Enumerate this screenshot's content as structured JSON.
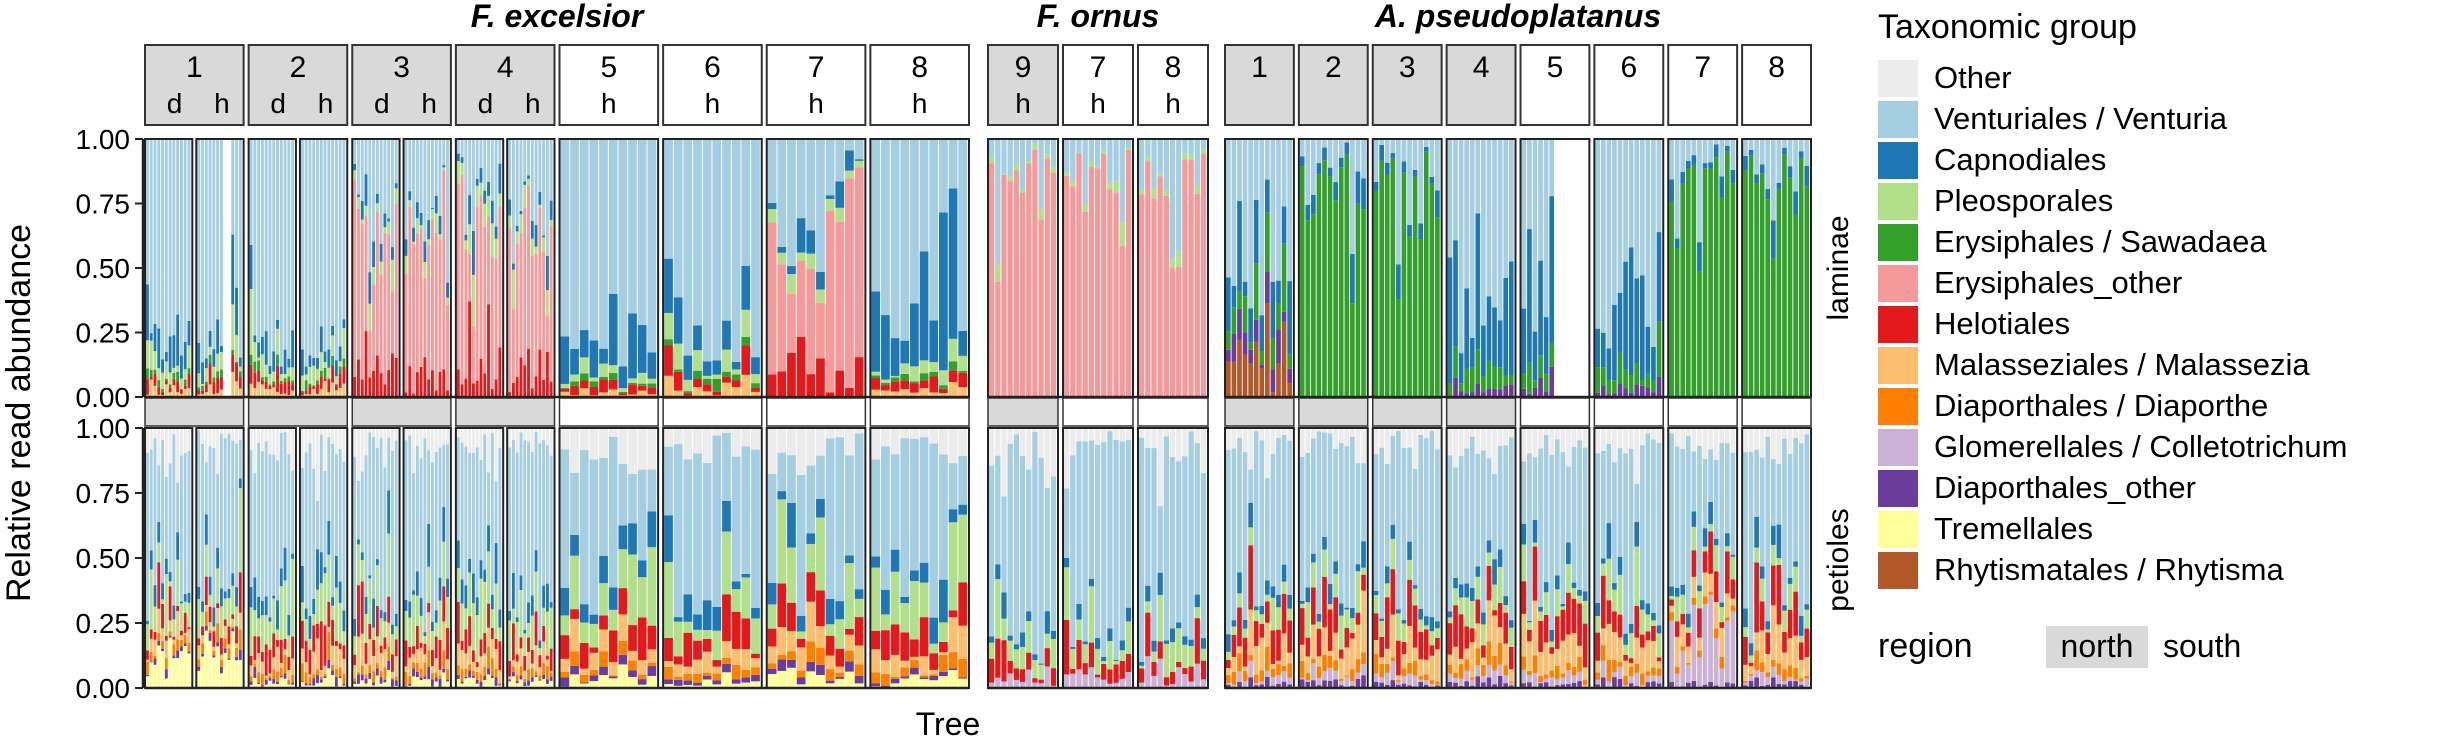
{
  "chart_data": {
    "type": "bar",
    "subtype": "stacked-relative-abundance-faceted",
    "ylabel": "Relative read abundance",
    "xlabel": "Tree",
    "ylim": [
      0,
      1
    ],
    "yticks": [
      "0.00",
      "0.25",
      "0.50",
      "0.75",
      "1.00"
    ],
    "ytick_values": [
      0,
      0.25,
      0.5,
      0.75,
      1.0
    ],
    "rows": [
      "laminae",
      "petioles"
    ],
    "species": [
      {
        "name": "F. excelsior",
        "trees": [
          {
            "tree": "1",
            "region": "north",
            "sites": [
              "d",
              "h"
            ]
          },
          {
            "tree": "2",
            "region": "north",
            "sites": [
              "d",
              "h"
            ]
          },
          {
            "tree": "3",
            "region": "north",
            "sites": [
              "d",
              "h"
            ]
          },
          {
            "tree": "4",
            "region": "north",
            "sites": [
              "d",
              "h"
            ]
          },
          {
            "tree": "5",
            "region": "south",
            "sites": [
              "h"
            ]
          },
          {
            "tree": "6",
            "region": "south",
            "sites": [
              "h"
            ]
          },
          {
            "tree": "7",
            "region": "south",
            "sites": [
              "h"
            ]
          },
          {
            "tree": "8",
            "region": "south",
            "sites": [
              "h"
            ]
          }
        ]
      },
      {
        "name": "F. ornus",
        "trees": [
          {
            "tree": "9",
            "region": "north",
            "sites": [
              "h"
            ]
          },
          {
            "tree": "7",
            "region": "south",
            "sites": [
              "h"
            ]
          },
          {
            "tree": "8",
            "region": "south",
            "sites": [
              "h"
            ]
          }
        ]
      },
      {
        "name": "A. pseudoplatanus",
        "trees": [
          {
            "tree": "1",
            "region": "north",
            "sites": [
              ""
            ]
          },
          {
            "tree": "2",
            "region": "north",
            "sites": [
              ""
            ]
          },
          {
            "tree": "3",
            "region": "north",
            "sites": [
              ""
            ]
          },
          {
            "tree": "4",
            "region": "north",
            "sites": [
              ""
            ]
          },
          {
            "tree": "5",
            "region": "south",
            "sites": [
              ""
            ]
          },
          {
            "tree": "6",
            "region": "south",
            "sites": [
              ""
            ]
          },
          {
            "tree": "7",
            "region": "south",
            "sites": [
              ""
            ]
          },
          {
            "tree": "8",
            "region": "south",
            "sites": [
              ""
            ]
          }
        ]
      }
    ],
    "legend": {
      "title": "Taxonomic group",
      "placement": "right",
      "groups": [
        {
          "name": "Other",
          "color": "#ececec"
        },
        {
          "name": "Venturiales / Venturia",
          "color": "#a6cee3"
        },
        {
          "name": "Capnodiales",
          "color": "#1f78b4"
        },
        {
          "name": "Pleosporales",
          "color": "#b2df8a"
        },
        {
          "name": "Erysiphales / Sawadaea",
          "color": "#33a02c"
        },
        {
          "name": "Erysiphales_other",
          "color": "#f49a9a"
        },
        {
          "name": "Helotiales",
          "color": "#e31a1c"
        },
        {
          "name": "Malasseziales / Malassezia",
          "color": "#fdbf6f"
        },
        {
          "name": "Diaporthales / Diaporthe",
          "color": "#ff7f00"
        },
        {
          "name": "Glomerellales / Colletotrichum",
          "color": "#cab2d6"
        },
        {
          "name": "Diaporthales_other",
          "color": "#6a3d9a"
        },
        {
          "name": "Tremellales",
          "color": "#ffff99"
        },
        {
          "name": "Rhytismatales / Rhytisma",
          "color": "#b15928"
        }
      ]
    },
    "region_legend": {
      "title": "region",
      "north": "north",
      "south": "south",
      "north_color": "#d9d9d9",
      "south_color": "#ffffff"
    },
    "dominant_group_by_panel": {
      "F. excelsior": {
        "laminae": "Venturiales / Venturia (trees 1-2, 5-6, 8), Erysiphales_other (trees 3-4, 7)",
        "petioles": "Venturiales / Venturia with Pleosporales, Helotiales"
      },
      "F. ornus": {
        "laminae": "Erysiphales_other",
        "petioles": "Venturiales / Venturia"
      },
      "A. pseudoplatanus": {
        "laminae": "Erysiphales / Sawadaea (trees 2, 3, 7, 8), Venturiales / Venturia (trees 1, 4, 5, 6)",
        "petioles": "Venturiales / Venturia with Helotiales, Malasseziales / Malassezia"
      }
    }
  }
}
